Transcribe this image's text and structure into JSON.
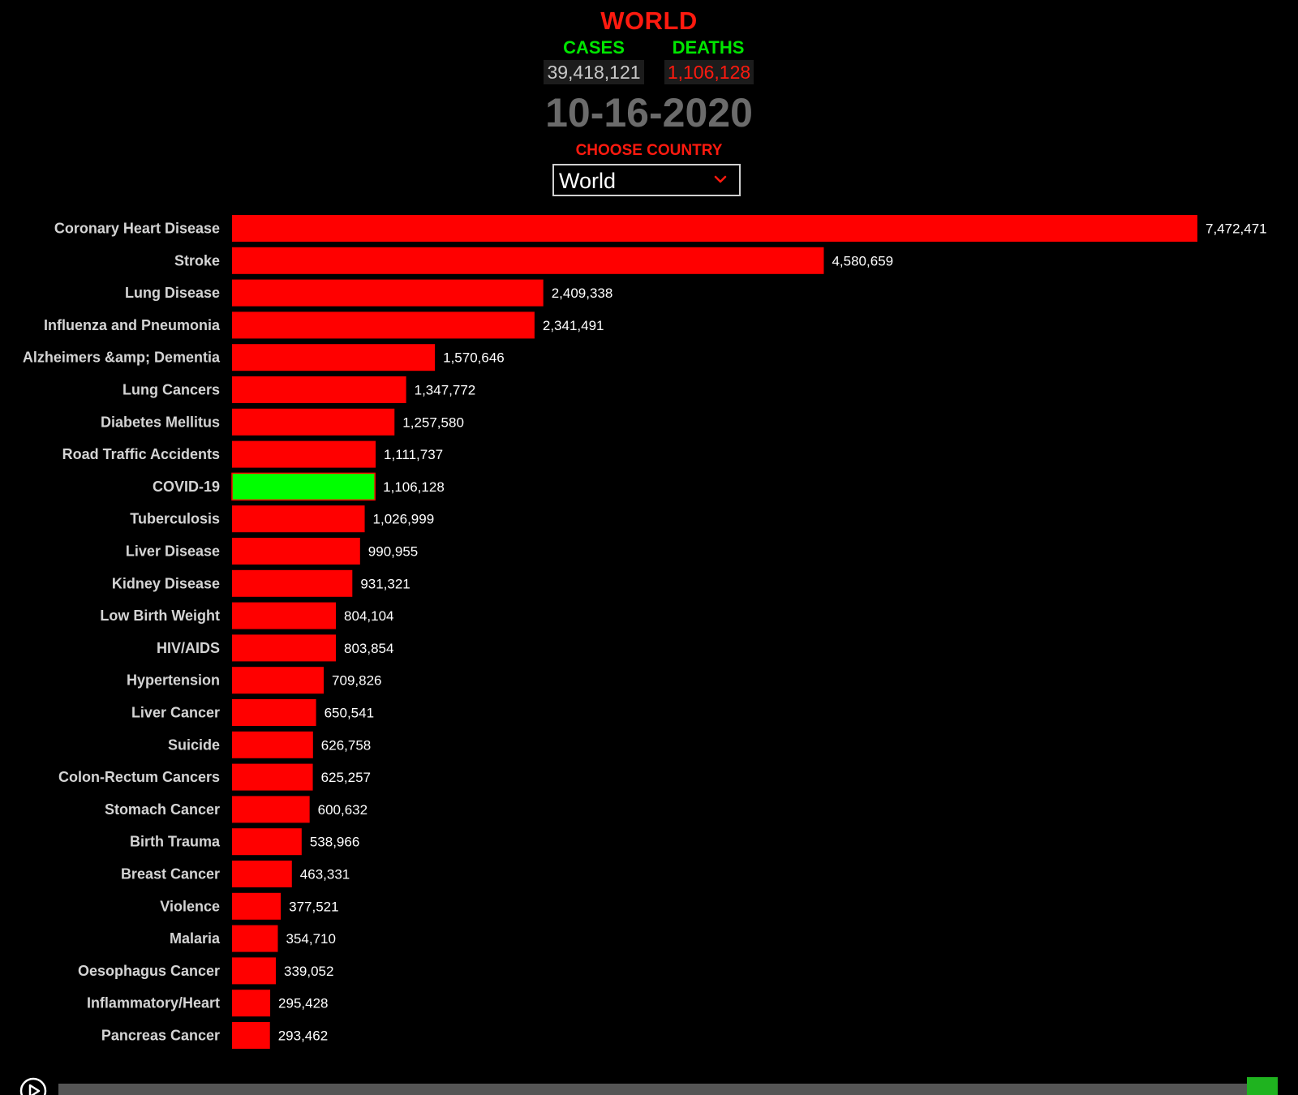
{
  "header": {
    "title": "WORLD",
    "cases_label": "CASES",
    "deaths_label": "DEATHS",
    "cases_value": "39,418,121",
    "deaths_value": "1,106,128",
    "date": "10-16-2020",
    "choose_label": "CHOOSE COUNTRY",
    "selected_country": "World"
  },
  "colors": {
    "bar": "#ff0000",
    "highlight_bar": "#00ff00",
    "title": "#ff1a0f",
    "stat_label": "#00e600",
    "slider_handle": "#1fb31f"
  },
  "icons": {
    "dropdown": "chevron-down-icon",
    "play": "play-icon"
  },
  "timeline": {
    "position": 1.0
  },
  "chart_data": {
    "type": "bar",
    "orientation": "horizontal",
    "highlight": "COVID-19",
    "categories": [
      "Coronary Heart Disease",
      "Stroke",
      "Lung Disease",
      "Influenza and Pneumonia",
      "Alzheimers &amp; Dementia",
      "Lung Cancers",
      "Diabetes Mellitus",
      "Road Traffic Accidents",
      "COVID-19",
      "Tuberculosis",
      "Liver Disease",
      "Kidney Disease",
      "Low Birth Weight",
      "HIV/AIDS",
      "Hypertension",
      "Liver Cancer",
      "Suicide",
      "Colon-Rectum Cancers",
      "Stomach Cancer",
      "Birth Trauma",
      "Breast Cancer",
      "Violence",
      "Malaria",
      "Oesophagus Cancer",
      "Inflammatory/Heart",
      "Pancreas Cancer"
    ],
    "values": [
      7472471,
      4580659,
      2409338,
      2341491,
      1570646,
      1347772,
      1257580,
      1111737,
      1106128,
      1026999,
      990955,
      931321,
      804104,
      803854,
      709826,
      650541,
      626758,
      625257,
      600632,
      538966,
      463331,
      377521,
      354710,
      339052,
      295428,
      293462
    ],
    "value_labels": [
      "7,472,471",
      "4,580,659",
      "2,409,338",
      "2,341,491",
      "1,570,646",
      "1,347,772",
      "1,257,580",
      "1,111,737",
      "1,106,128",
      "1,026,999",
      "990,955",
      "931,321",
      "804,104",
      "803,854",
      "709,826",
      "650,541",
      "626,758",
      "625,257",
      "600,632",
      "538,966",
      "463,331",
      "377,521",
      "354,710",
      "339,052",
      "295,428",
      "293,462"
    ],
    "xlim": [
      0,
      7472471
    ],
    "grid": false,
    "legend": "none"
  }
}
